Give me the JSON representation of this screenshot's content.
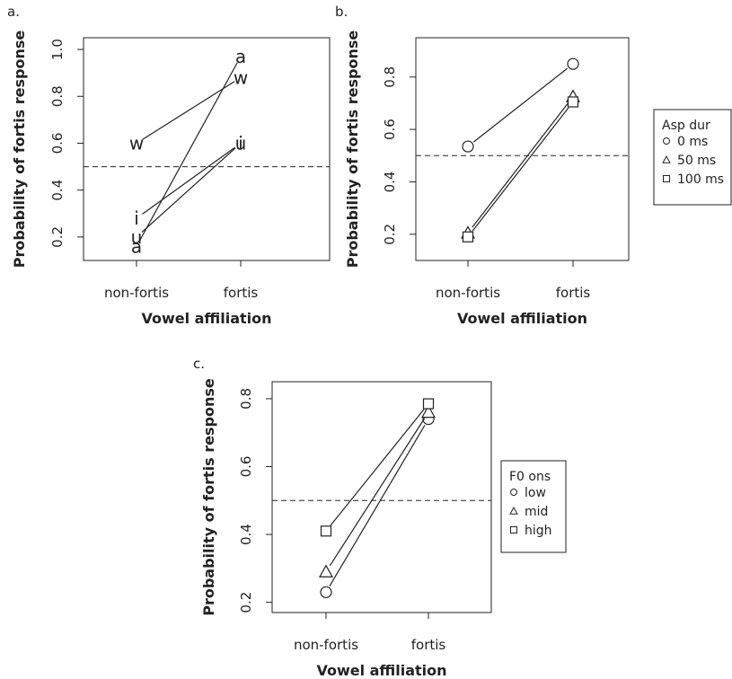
{
  "chart_data": [
    {
      "panel": "a.",
      "type": "line",
      "ylabel": "Probability of fortis response",
      "xlabel": "Vowel affiliation",
      "categories": [
        "non-fortis",
        "fortis"
      ],
      "ylim": [
        0.1,
        1.05
      ],
      "yticks": [
        "0.2",
        "0.4",
        "0.6",
        "0.8",
        "1.0"
      ],
      "reference_line": 0.5,
      "marker_style": "letters",
      "series": [
        {
          "name": "a",
          "marker": "a",
          "values": [
            0.16,
            0.97
          ]
        },
        {
          "name": "w",
          "marker": "w",
          "values": [
            0.6,
            0.88
          ]
        },
        {
          "name": "u",
          "marker": "u",
          "values": [
            0.2,
            0.6
          ]
        },
        {
          "name": "i",
          "marker": "i",
          "values": [
            0.28,
            0.6
          ]
        }
      ]
    },
    {
      "panel": "b.",
      "type": "line",
      "ylabel": "Probability of fortis response",
      "xlabel": "Vowel affiliation",
      "categories": [
        "non-fortis",
        "fortis"
      ],
      "ylim": [
        0.1,
        0.95
      ],
      "yticks": [
        "0.2",
        "0.4",
        "0.6",
        "0.8"
      ],
      "reference_line": 0.5,
      "legend": {
        "title": "Asp dur",
        "position": "right"
      },
      "series": [
        {
          "name": "0 ms",
          "marker": "circle",
          "values": [
            0.535,
            0.85
          ]
        },
        {
          "name": "50 ms",
          "marker": "triangle",
          "values": [
            0.205,
            0.725
          ]
        },
        {
          "name": "100 ms",
          "marker": "square",
          "values": [
            0.19,
            0.705
          ]
        }
      ]
    },
    {
      "panel": "c.",
      "type": "line",
      "ylabel": "Probability of fortis response",
      "xlabel": "Vowel affiliation",
      "categories": [
        "non-fortis",
        "fortis"
      ],
      "ylim": [
        0.17,
        0.85
      ],
      "yticks": [
        "0.2",
        "0.4",
        "0.6",
        "0.8"
      ],
      "reference_line": 0.5,
      "legend": {
        "title": "F0 ons",
        "position": "right"
      },
      "series": [
        {
          "name": "low",
          "marker": "circle",
          "values": [
            0.23,
            0.74
          ]
        },
        {
          "name": "mid",
          "marker": "triangle",
          "values": [
            0.29,
            0.76
          ]
        },
        {
          "name": "high",
          "marker": "square",
          "values": [
            0.41,
            0.785
          ]
        }
      ]
    }
  ]
}
